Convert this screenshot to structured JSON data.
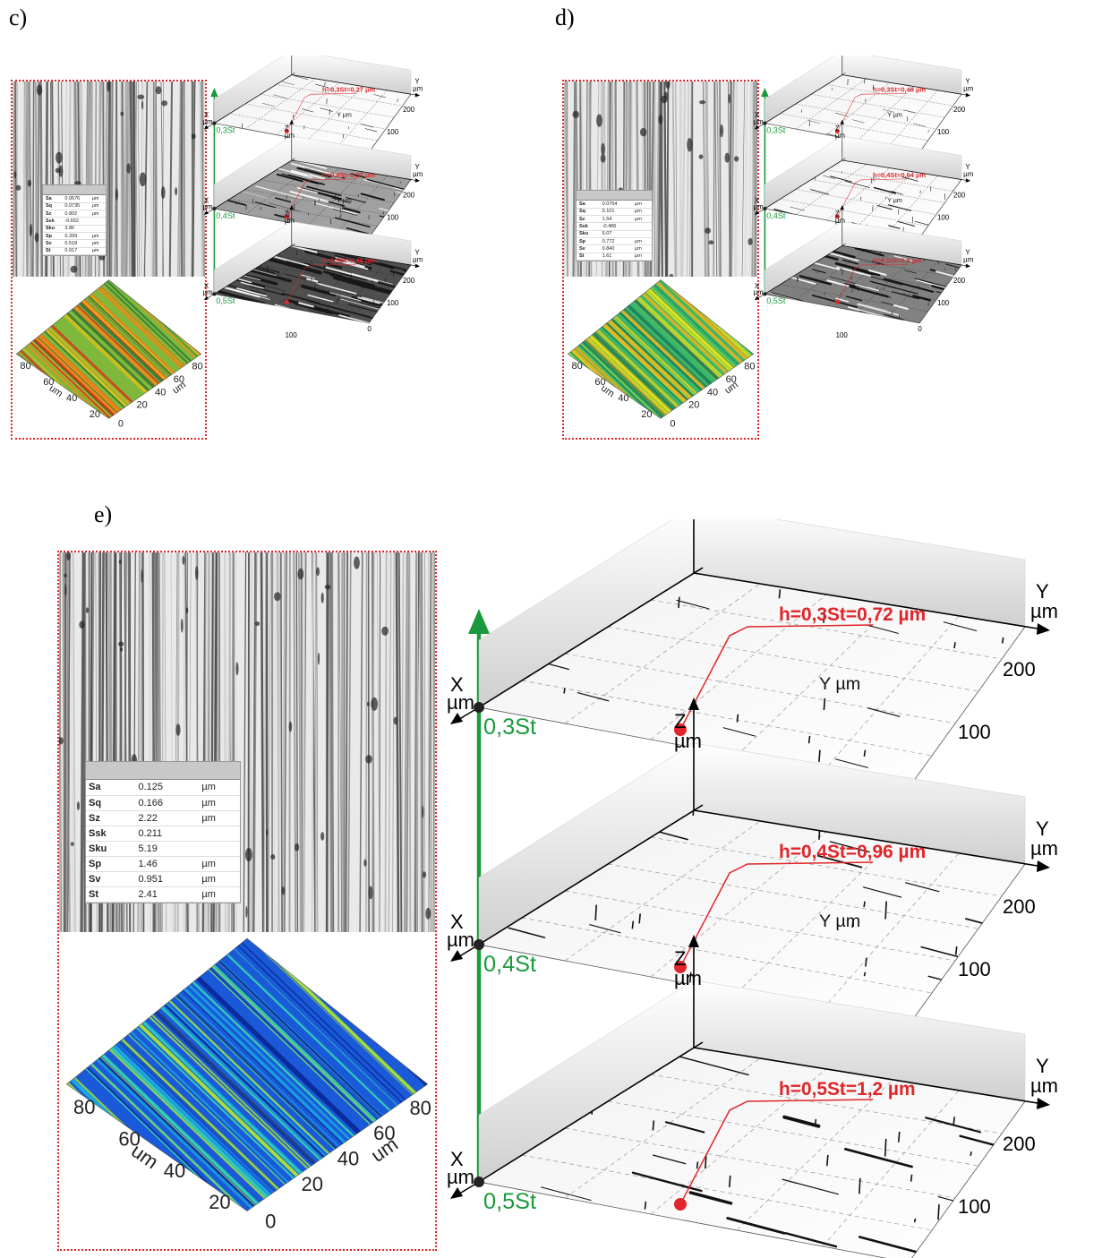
{
  "panels": [
    {
      "label": "c)",
      "table": [
        {
          "name": "Sa",
          "value": "0.0576",
          "unit": "µm"
        },
        {
          "name": "Sq",
          "value": "0.0735",
          "unit": "µm"
        },
        {
          "name": "Sz",
          "value": "0.802",
          "unit": "µm"
        },
        {
          "name": "Ssk",
          "value": "-0.652",
          "unit": ""
        },
        {
          "name": "Sku",
          "value": "3.86",
          "unit": ""
        },
        {
          "name": "Sp",
          "value": "0.399",
          "unit": "µm"
        },
        {
          "name": "Sv",
          "value": "0.518",
          "unit": "µm"
        },
        {
          "name": "St",
          "value": "0.917",
          "unit": "µm"
        }
      ],
      "surface_ticks_left": [
        "80",
        "60",
        "40",
        "20"
      ],
      "surface_ticks_right": [
        "80",
        "60",
        "40",
        "20",
        "0"
      ],
      "surface_axis_unit": "um",
      "levels": [
        {
          "name": "0,3St",
          "annotation": "h=0,3St=0,27 µm"
        },
        {
          "name": "0,4St",
          "annotation": "h=0,4St=0,37 µm"
        },
        {
          "name": "0,5St",
          "annotation": "h=0,5St=0,46 µm"
        }
      ],
      "coverage": [
        0.05,
        0.45,
        0.85
      ]
    },
    {
      "label": "d)",
      "table": [
        {
          "name": "Sa",
          "value": "0.0764",
          "unit": "µm"
        },
        {
          "name": "Sq",
          "value": "0.101",
          "unit": "µm"
        },
        {
          "name": "Sz",
          "value": "1.54",
          "unit": "µm"
        },
        {
          "name": "Ssk",
          "value": "-0.486",
          "unit": ""
        },
        {
          "name": "Sku",
          "value": "6.07",
          "unit": ""
        },
        {
          "name": "Sp",
          "value": "0.772",
          "unit": "µm"
        },
        {
          "name": "Sv",
          "value": "0.840",
          "unit": "µm"
        },
        {
          "name": "St",
          "value": "1.61",
          "unit": "µm"
        }
      ],
      "surface_ticks_left": [
        "80",
        "60",
        "40",
        "20"
      ],
      "surface_ticks_right": [
        "80",
        "60",
        "40",
        "20",
        "0"
      ],
      "surface_axis_unit": "um",
      "levels": [
        {
          "name": "0,3St",
          "annotation": "h=0,3St=0,48 µm"
        },
        {
          "name": "0,4St",
          "annotation": "h=0,4St=0,64 µm"
        },
        {
          "name": "0,5St",
          "annotation": "h=0,5St=0,8 µm"
        }
      ],
      "coverage": [
        0.03,
        0.25,
        0.6
      ]
    },
    {
      "label": "e)",
      "table": [
        {
          "name": "Sa",
          "value": "0.125",
          "unit": "µm"
        },
        {
          "name": "Sq",
          "value": "0.166",
          "unit": "µm"
        },
        {
          "name": "Sz",
          "value": "2.22",
          "unit": "µm"
        },
        {
          "name": "Ssk",
          "value": "0.211",
          "unit": ""
        },
        {
          "name": "Sku",
          "value": "5.19",
          "unit": ""
        },
        {
          "name": "Sp",
          "value": "1.46",
          "unit": "µm"
        },
        {
          "name": "Sv",
          "value": "0.951",
          "unit": "µm"
        },
        {
          "name": "St",
          "value": "2.41",
          "unit": "µm"
        }
      ],
      "surface_ticks_left": [
        "80",
        "60",
        "40",
        "20"
      ],
      "surface_ticks_right": [
        "80",
        "60",
        "40",
        "20",
        "0"
      ],
      "surface_axis_unit": "um",
      "levels": [
        {
          "name": "0,3St",
          "annotation": "h=0,3St=0,72 µm"
        },
        {
          "name": "0,4St",
          "annotation": "h=0,4St=0,96 µm"
        },
        {
          "name": "0,5St",
          "annotation": "h=0,5St=1,2 µm"
        }
      ],
      "coverage": [
        0.02,
        0.08,
        0.25
      ]
    }
  ],
  "axis_text": {
    "z": "Z",
    "y": "Y",
    "x": "X",
    "unit": "µm",
    "y_um": "Y µm",
    "x_um": "Xµm",
    "y200": "200",
    "y100": "100",
    "x100": "100",
    "zero": "0"
  },
  "colors": {
    "frame": "#e0262a",
    "level_axis": "#1a9a3c",
    "annotation": "#e0262a",
    "surface_c": [
      "#2a7a3a",
      "#7fb83a",
      "#e6c21a",
      "#f08a1a",
      "#d9301a"
    ],
    "surface_d": [
      "#1a7a5a",
      "#3ab86a",
      "#a8d83a",
      "#e6e21a",
      "#f2b21a"
    ],
    "surface_e": [
      "#0a2a9a",
      "#1a5ad8",
      "#1aa8e0",
      "#3ad8b0",
      "#a8e03a"
    ]
  }
}
